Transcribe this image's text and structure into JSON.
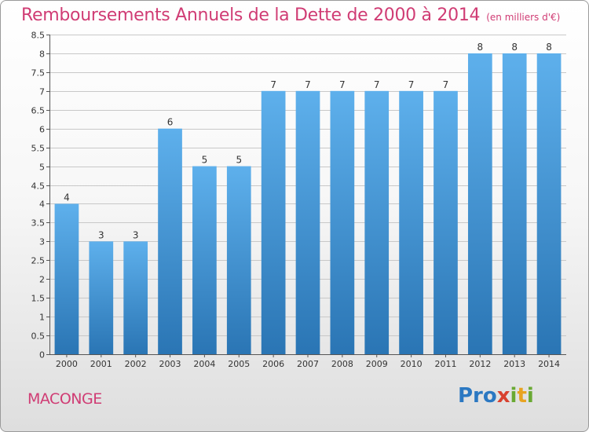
{
  "header": {
    "title": "Remboursements Annuels de la Dette de 2000 à 2014",
    "unit": "(en milliers d'€)"
  },
  "footer": {
    "town": "MACONGE",
    "logo": {
      "p1": "Pro",
      "p2": "x",
      "p3": "i",
      "p4": "t",
      "p5": "i"
    }
  },
  "chart_data": {
    "type": "bar",
    "title": "Remboursements Annuels de la Dette de 2000 à 2014",
    "xlabel": "",
    "ylabel": "",
    "categories": [
      "2000",
      "2001",
      "2002",
      "2003",
      "2004",
      "2005",
      "2006",
      "2007",
      "2008",
      "2009",
      "2010",
      "2011",
      "2012",
      "2013",
      "2014"
    ],
    "values": [
      4,
      3,
      3,
      6,
      5,
      5,
      7,
      7,
      7,
      7,
      7,
      7,
      8,
      8,
      8
    ],
    "ylim": [
      0,
      8.5
    ],
    "yticks": [
      "0",
      "0.5",
      "1",
      "1.5",
      "2",
      "2.5",
      "3",
      "3.5",
      "4",
      "4.5",
      "5",
      "5.5",
      "6",
      "6.5",
      "7",
      "7.5",
      "8",
      "8.5"
    ],
    "grid": true,
    "colors": {
      "bar_top": "#5eb0ec",
      "bar_bottom": "#2a75b4",
      "label": "#333333",
      "grid": "#c8c8c8"
    }
  }
}
